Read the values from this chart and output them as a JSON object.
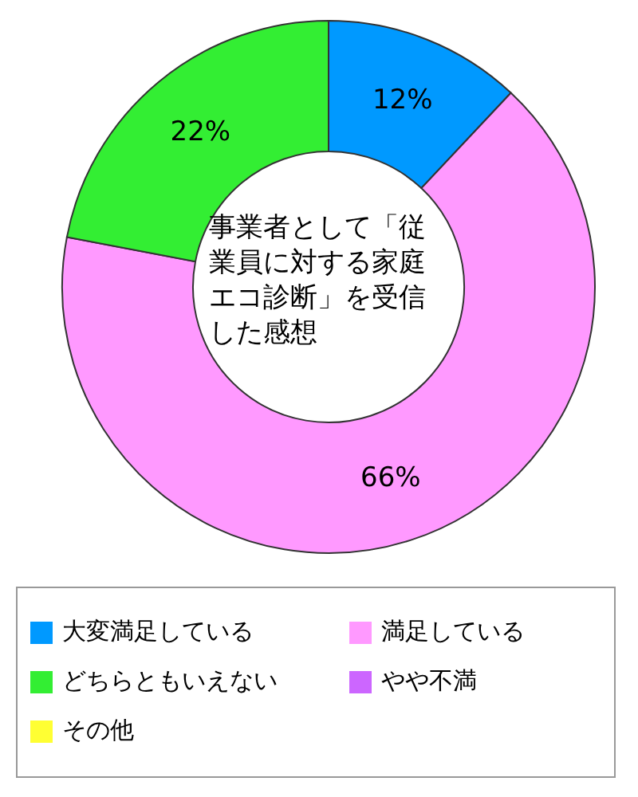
{
  "chart_data": {
    "type": "donut",
    "title": "事業者として「従業員に対する家庭エコ診断」を受信した感想",
    "categories": [
      "大変満足している",
      "満足している",
      "どちらともいえない",
      "やや不満",
      "その他"
    ],
    "values": [
      12,
      66,
      22,
      0,
      0
    ],
    "value_labels": [
      "12%",
      "66%",
      "22%",
      null,
      null
    ],
    "colors": [
      "#0099ff",
      "#ff99ff",
      "#33ee33",
      "#cc66ff",
      "#ffff33"
    ],
    "legend": "bottom"
  }
}
